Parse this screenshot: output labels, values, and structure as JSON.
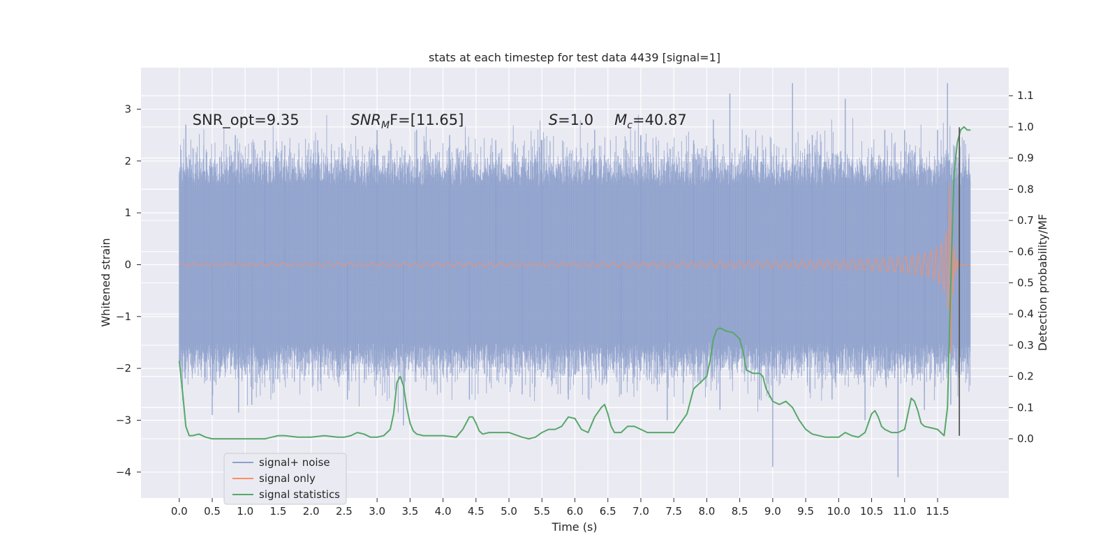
{
  "chart_data": {
    "type": "line",
    "title": "stats at each timestep for test data 4439 [signal=1]",
    "xlabel": "Time (s)",
    "ylabel": "Whitened strain",
    "ylabel_right": "Detection probability/MF",
    "xlim": [
      -0.58,
      12.58
    ],
    "ylim": [
      -4.5,
      3.8
    ],
    "ylim_right": [
      -0.19,
      1.19
    ],
    "x_ticks": [
      0.0,
      0.5,
      1.0,
      1.5,
      2.0,
      2.5,
      3.0,
      3.5,
      4.0,
      4.5,
      5.0,
      5.5,
      6.0,
      6.5,
      7.0,
      7.5,
      8.0,
      8.5,
      9.0,
      9.5,
      10.0,
      10.5,
      11.0,
      11.5
    ],
    "x_tick_labels": [
      "0.0",
      "0.5",
      "1.0",
      "1.5",
      "2.0",
      "2.5",
      "3.0",
      "3.5",
      "4.0",
      "4.5",
      "5.0",
      "5.5",
      "6.0",
      "6.5",
      "7.0",
      "7.5",
      "8.0",
      "8.5",
      "9.0",
      "9.5",
      "10.0",
      "10.5",
      "11.0",
      "11.5"
    ],
    "y_ticks": [
      -4,
      -3,
      -2,
      -1,
      0,
      1,
      2,
      3
    ],
    "y_tick_labels": [
      "−4",
      "−3",
      "−2",
      "−1",
      "0",
      "1",
      "2",
      "3"
    ],
    "y_right_ticks": [
      0.0,
      0.1,
      0.2,
      0.3,
      0.4,
      0.5,
      0.6,
      0.7,
      0.8,
      0.9,
      1.0,
      1.1
    ],
    "y_right_tick_labels": [
      "0.0",
      "0.1",
      "0.2",
      "0.3",
      "0.4",
      "0.5",
      "0.6",
      "0.7",
      "0.8",
      "0.9",
      "1.0",
      "1.1"
    ],
    "grid": true,
    "legend_position": "lower-left",
    "annotations": [
      {
        "id": "snr-opt",
        "text": "SNR_opt=9.35",
        "x": 0.2,
        "y": 2.7
      },
      {
        "id": "snr-mf",
        "base": "SNR",
        "sub": "M",
        "rest": "F=[11.65]",
        "x": 2.6,
        "y": 2.7
      },
      {
        "id": "s-value",
        "base": "S",
        "rest": "=1.0",
        "x": 5.6,
        "y": 2.7
      },
      {
        "id": "mchirp",
        "base": "M",
        "sub": "c",
        "rest": "=40.87",
        "x": 6.6,
        "y": 2.7
      }
    ],
    "marker_line": {
      "x": 11.83,
      "y_range": [
        -3.3,
        2.65
      ],
      "color": "#555555"
    },
    "series": [
      {
        "name": "signal+ noise",
        "color": "#8da0cb",
        "kind": "noise",
        "x_range": [
          0.0,
          12.0
        ],
        "band": [
          -1.5,
          1.5
        ],
        "spikes": [
          [
            0.1,
            2.7
          ],
          [
            0.5,
            -2.9
          ],
          [
            0.85,
            2.5
          ],
          [
            0.9,
            -2.85
          ],
          [
            1.1,
            -2.7
          ],
          [
            1.3,
            2.4
          ],
          [
            1.6,
            2.3
          ],
          [
            2.1,
            2.4
          ],
          [
            2.55,
            -2.6
          ],
          [
            3.0,
            2.6
          ],
          [
            3.4,
            -3.1
          ],
          [
            3.6,
            2.6
          ],
          [
            4.1,
            2.5
          ],
          [
            4.4,
            -2.6
          ],
          [
            4.8,
            2.4
          ],
          [
            5.2,
            -2.5
          ],
          [
            5.5,
            2.4
          ],
          [
            5.9,
            -2.6
          ],
          [
            6.3,
            2.6
          ],
          [
            6.7,
            -2.5
          ],
          [
            7.0,
            2.5
          ],
          [
            7.4,
            -3.0
          ],
          [
            7.8,
            2.4
          ],
          [
            8.1,
            2.8
          ],
          [
            8.2,
            -2.8
          ],
          [
            8.35,
            3.3
          ],
          [
            8.6,
            2.5
          ],
          [
            8.8,
            -2.6
          ],
          [
            9.0,
            -3.9
          ],
          [
            9.3,
            3.5
          ],
          [
            9.6,
            2.5
          ],
          [
            9.9,
            -2.6
          ],
          [
            10.1,
            3.2
          ],
          [
            10.4,
            -3.0
          ],
          [
            10.7,
            2.6
          ],
          [
            10.9,
            -4.1
          ],
          [
            11.0,
            2.6
          ],
          [
            11.3,
            -2.8
          ],
          [
            11.5,
            2.6
          ],
          [
            11.65,
            3.5
          ],
          [
            11.7,
            -2.7
          ],
          [
            11.9,
            2.4
          ]
        ]
      },
      {
        "name": "signal only",
        "color": "#fc8d62",
        "kind": "chirp",
        "x_range": [
          0.0,
          12.0
        ],
        "peak_time": 11.7,
        "peak_amplitude": 1.9
      },
      {
        "name": "signal statistics",
        "color": "#55a868",
        "axis": "right",
        "x": [
          0.0,
          0.05,
          0.1,
          0.15,
          0.2,
          0.3,
          0.4,
          0.5,
          0.7,
          1.0,
          1.3,
          1.5,
          1.6,
          1.8,
          2.0,
          2.2,
          2.4,
          2.5,
          2.6,
          2.7,
          2.8,
          2.9,
          3.0,
          3.1,
          3.2,
          3.25,
          3.3,
          3.35,
          3.4,
          3.45,
          3.5,
          3.55,
          3.6,
          3.7,
          3.8,
          4.0,
          4.2,
          4.3,
          4.4,
          4.45,
          4.5,
          4.55,
          4.6,
          4.7,
          4.8,
          5.0,
          5.2,
          5.3,
          5.4,
          5.5,
          5.6,
          5.7,
          5.8,
          5.9,
          6.0,
          6.1,
          6.2,
          6.3,
          6.4,
          6.45,
          6.5,
          6.55,
          6.6,
          6.7,
          6.8,
          6.9,
          7.0,
          7.1,
          7.2,
          7.3,
          7.5,
          7.7,
          7.8,
          7.9,
          8.0,
          8.05,
          8.1,
          8.15,
          8.2,
          8.3,
          8.4,
          8.5,
          8.55,
          8.6,
          8.7,
          8.8,
          8.85,
          8.9,
          9.0,
          9.1,
          9.2,
          9.3,
          9.4,
          9.5,
          9.6,
          9.8,
          10.0,
          10.1,
          10.2,
          10.3,
          10.4,
          10.5,
          10.55,
          10.6,
          10.65,
          10.7,
          10.8,
          10.9,
          11.0,
          11.1,
          11.15,
          11.2,
          11.25,
          11.3,
          11.4,
          11.5,
          11.6,
          11.65,
          11.7,
          11.75,
          11.8,
          11.85,
          11.9,
          11.95,
          12.0
        ],
        "y": [
          0.25,
          0.15,
          0.04,
          0.01,
          0.01,
          0.015,
          0.005,
          0.0,
          0.0,
          0.0,
          0.0,
          0.01,
          0.01,
          0.005,
          0.005,
          0.01,
          0.005,
          0.005,
          0.01,
          0.02,
          0.015,
          0.005,
          0.005,
          0.01,
          0.03,
          0.08,
          0.18,
          0.2,
          0.17,
          0.1,
          0.05,
          0.025,
          0.015,
          0.01,
          0.01,
          0.01,
          0.005,
          0.03,
          0.07,
          0.07,
          0.05,
          0.025,
          0.015,
          0.02,
          0.02,
          0.02,
          0.005,
          0.0,
          0.005,
          0.02,
          0.03,
          0.03,
          0.04,
          0.07,
          0.065,
          0.03,
          0.02,
          0.07,
          0.1,
          0.11,
          0.08,
          0.04,
          0.02,
          0.02,
          0.04,
          0.04,
          0.03,
          0.02,
          0.02,
          0.02,
          0.02,
          0.08,
          0.16,
          0.18,
          0.2,
          0.25,
          0.32,
          0.35,
          0.355,
          0.345,
          0.34,
          0.32,
          0.28,
          0.22,
          0.21,
          0.21,
          0.2,
          0.16,
          0.12,
          0.11,
          0.12,
          0.1,
          0.06,
          0.03,
          0.015,
          0.005,
          0.005,
          0.02,
          0.01,
          0.005,
          0.02,
          0.08,
          0.09,
          0.07,
          0.04,
          0.03,
          0.02,
          0.02,
          0.03,
          0.13,
          0.12,
          0.09,
          0.05,
          0.04,
          0.035,
          0.03,
          0.01,
          0.1,
          0.5,
          0.85,
          0.95,
          0.99,
          1.0,
          0.99,
          0.99
        ]
      }
    ]
  }
}
